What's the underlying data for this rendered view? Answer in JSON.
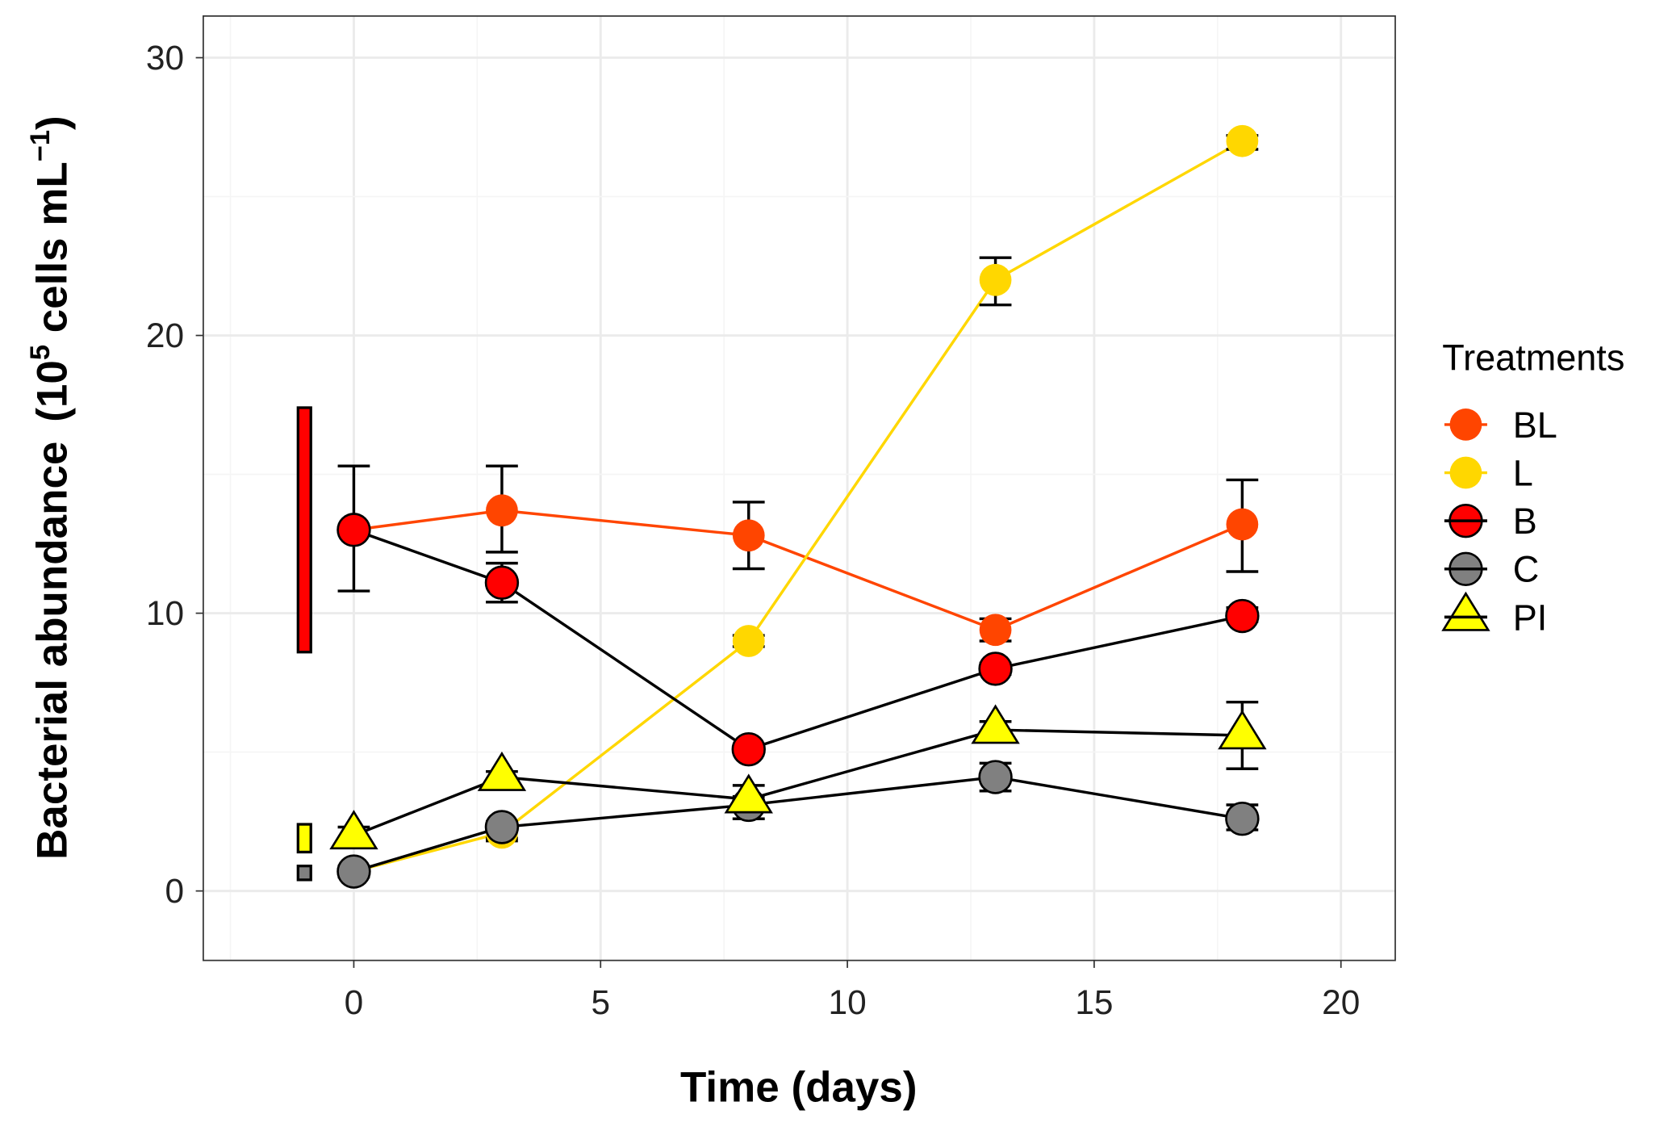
{
  "chart_data": {
    "type": "line",
    "xlabel": "Time (days)",
    "ylabel": {
      "main": "Bacterial abundance",
      "open": "(10",
      "exp1": "5",
      "mid": " cells mL",
      "exp2": "−1",
      "close": ")"
    },
    "xlim": [
      -3.05,
      21.1
    ],
    "ylim": [
      -2.5,
      31.5
    ],
    "xticks": [
      0,
      5,
      10,
      15,
      20
    ],
    "yticks": [
      0,
      10,
      20,
      30
    ],
    "xtick_labels": [
      "0",
      "5",
      "10",
      "15",
      "20"
    ],
    "ytick_labels": [
      "0",
      "10",
      "20",
      "30"
    ],
    "grid": true,
    "legend": {
      "title": "Treatments",
      "placement": "right"
    },
    "x": [
      0,
      3,
      8,
      13,
      18
    ],
    "series": [
      {
        "name": "BL",
        "color": "#FF4500",
        "line": "#FF4500",
        "shape": "circle",
        "outline": false,
        "values": [
          13.0,
          13.7,
          12.8,
          9.4,
          13.2
        ],
        "lower": [
          10.8,
          12.2,
          11.6,
          9.0,
          11.5
        ],
        "upper": [
          15.3,
          15.3,
          14.0,
          9.8,
          14.8
        ]
      },
      {
        "name": "L",
        "color": "#FFD700",
        "line": "#FFD700",
        "shape": "circle",
        "outline": false,
        "values": [
          0.7,
          2.1,
          9.0,
          22.0,
          27.0
        ],
        "lower": [
          0.6,
          1.9,
          8.8,
          21.1,
          26.7
        ],
        "upper": [
          0.8,
          2.3,
          9.2,
          22.8,
          27.2
        ]
      },
      {
        "name": "B",
        "color": "#FF0000",
        "line": "#000000",
        "shape": "circle",
        "outline": true,
        "values": [
          13.0,
          11.1,
          5.1,
          8.0,
          9.9
        ],
        "lower": [
          12.9,
          10.4,
          5.0,
          7.8,
          9.7
        ],
        "upper": [
          13.1,
          11.8,
          5.2,
          8.2,
          10.2
        ]
      },
      {
        "name": "C",
        "color": "#808080",
        "line": "#000000",
        "shape": "circle",
        "outline": true,
        "values": [
          0.7,
          2.3,
          3.1,
          4.1,
          2.6
        ],
        "lower": [
          0.5,
          1.8,
          2.6,
          3.6,
          2.2
        ],
        "upper": [
          0.9,
          2.5,
          3.4,
          4.6,
          3.1
        ]
      },
      {
        "name": "PI",
        "color": "#FFFF00",
        "line": "#000000",
        "shape": "triangle",
        "outline": true,
        "values": [
          2.0,
          4.1,
          3.3,
          5.8,
          5.6
        ],
        "lower": [
          1.7,
          4.0,
          2.6,
          5.6,
          4.4
        ],
        "upper": [
          2.3,
          4.3,
          3.8,
          6.1,
          6.8
        ]
      }
    ],
    "initial_ranges": [
      {
        "x": -1,
        "ymin": 8.6,
        "ymax": 17.4,
        "color": "#FF0000"
      },
      {
        "x": -1,
        "ymin": 1.4,
        "ymax": 2.4,
        "color": "#FFFF00"
      },
      {
        "x": -1,
        "ymin": 0.4,
        "ymax": 0.9,
        "color": "#808080"
      }
    ]
  }
}
